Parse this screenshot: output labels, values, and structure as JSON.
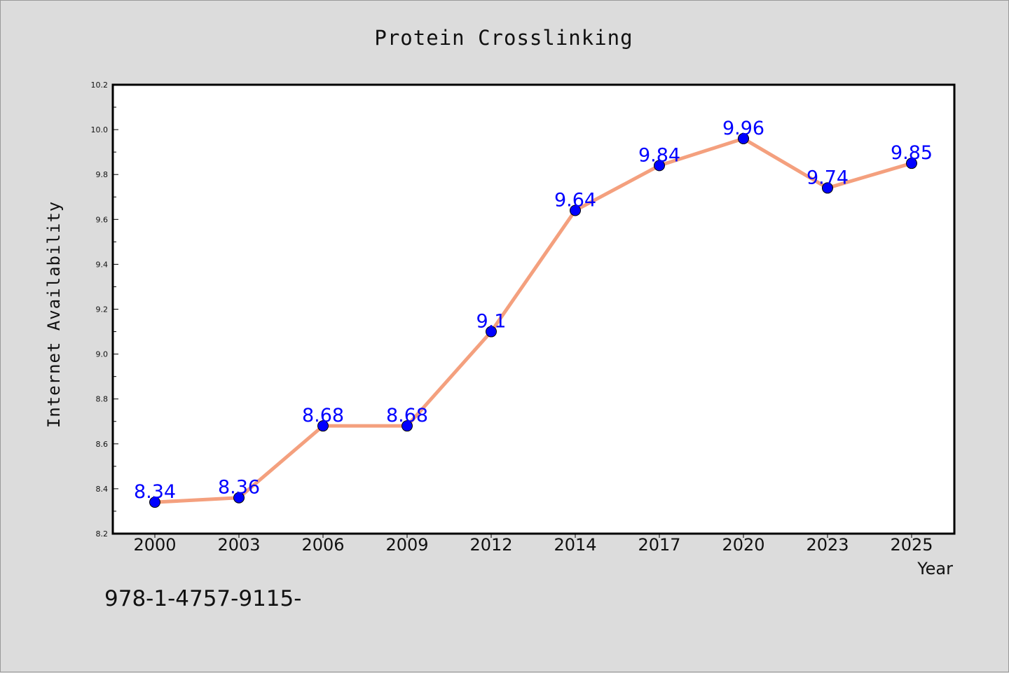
{
  "chart_data": {
    "type": "line",
    "title": "Protein Crosslinking",
    "xlabel": "Year",
    "ylabel": "Internet Availability",
    "categories": [
      "2000",
      "2003",
      "2006",
      "2009",
      "2012",
      "2014",
      "2017",
      "2020",
      "2023",
      "2025"
    ],
    "series": [
      {
        "values": [
          8.34,
          8.36,
          8.68,
          8.68,
          9.1,
          9.64,
          9.84,
          9.96,
          9.74,
          9.85
        ],
        "data_labels": [
          "8.34",
          "8.36",
          "8.68",
          "8.68",
          "9.1",
          "9.64",
          "9.84",
          "9.96",
          "9.74",
          "9.85"
        ],
        "line_color": "#f4a07e",
        "marker_color": "#0000ff"
      }
    ],
    "ylim": [
      8.2,
      10.2
    ],
    "yticks": [
      "8.2",
      "8.4",
      "8.6",
      "8.8",
      "9.0",
      "9.2",
      "9.4",
      "9.6",
      "9.8",
      "10.0",
      "10.2"
    ],
    "grid": false,
    "legend": "none"
  },
  "footnote": "978-1-4757-9115-",
  "colors": {
    "background": "#dcdcdc",
    "plot_background": "#ffffff",
    "label_color": "#0000ff"
  }
}
